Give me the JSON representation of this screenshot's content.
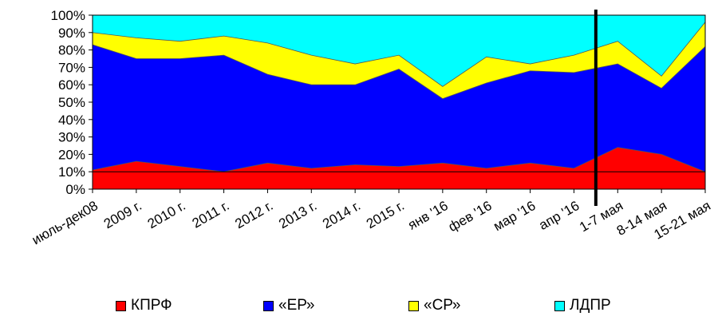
{
  "chart_data": {
    "type": "area",
    "stacked": true,
    "percent": true,
    "categories": [
      "июль-дек08",
      "2009 г.",
      "2010 г.",
      "2011 г.",
      "2012 г.",
      "2013 г.",
      "2014 г.",
      "2015 г.",
      "янв '16",
      "фев '16",
      "мар '16",
      "апр '16",
      "1-7 мая",
      "8-14 мая",
      "15-21 мая"
    ],
    "series": [
      {
        "name": "КПРФ",
        "color": "#ff0000",
        "values": [
          11,
          16,
          13,
          10,
          15,
          12,
          14,
          13,
          15,
          12,
          15,
          12,
          24,
          20,
          10
        ]
      },
      {
        "name": "«ЕР»",
        "color": "#0000ff",
        "values": [
          72,
          59,
          62,
          67,
          51,
          48,
          46,
          56,
          37,
          49,
          53,
          55,
          48,
          38,
          72
        ]
      },
      {
        "name": "«СР»",
        "color": "#ffff00",
        "values": [
          7,
          12,
          10,
          11,
          18,
          17,
          12,
          8,
          7,
          15,
          4,
          10,
          13,
          7,
          14
        ]
      },
      {
        "name": "ЛДПР",
        "color": "#00ffff",
        "values": [
          10,
          13,
          15,
          12,
          16,
          23,
          28,
          23,
          41,
          24,
          28,
          23,
          15,
          35,
          4
        ]
      }
    ],
    "yticks": [
      "0%",
      "10%",
      "20%",
      "30%",
      "40%",
      "50%",
      "60%",
      "70%",
      "80%",
      "90%",
      "100%"
    ],
    "ylim": [
      0,
      100
    ],
    "reference_line_y": 10,
    "vertical_marker_after": "апр '16",
    "legend_position": "bottom"
  }
}
